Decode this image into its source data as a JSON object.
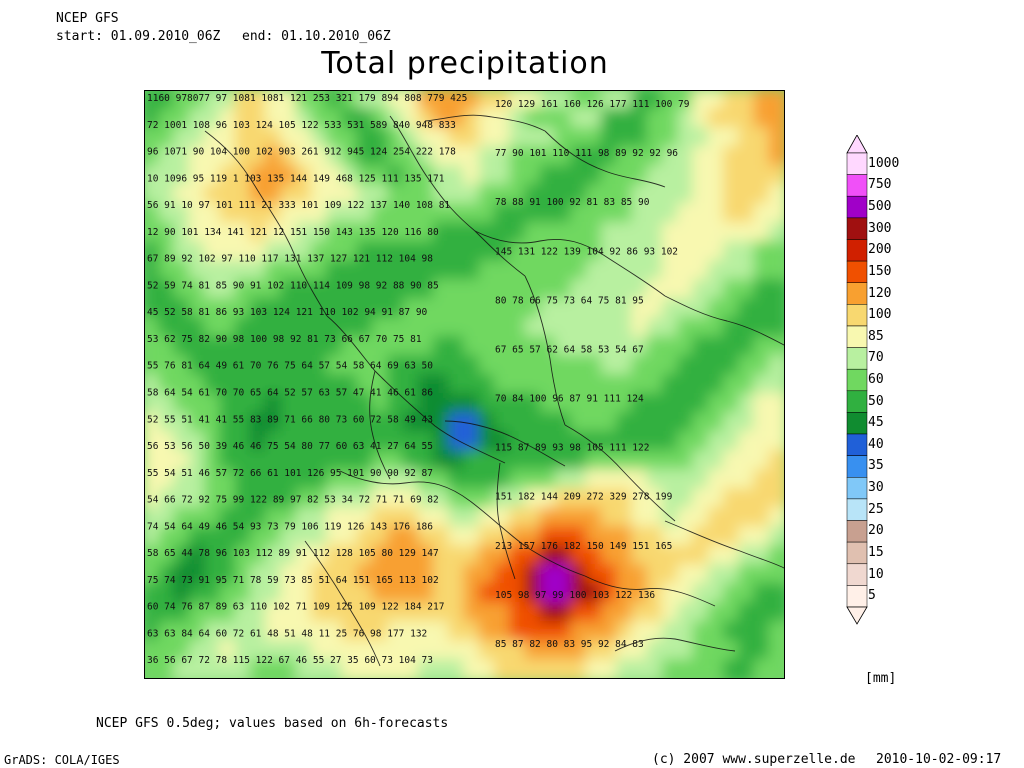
{
  "header": {
    "model": "NCEP GFS",
    "start_label": "start: 01.09.2010_06Z",
    "end_label": "end: 01.10.2010_06Z",
    "title": "Total precipitation"
  },
  "footer": {
    "note": "NCEP GFS 0.5deg; values based on 6h-forecasts",
    "software": "GrADS: COLA/IGES",
    "copyright": "(c) 2007 www.superzelle.de",
    "timestamp": "2010-10-02-09:17"
  },
  "legend": {
    "unit": "[mm]",
    "levels": [
      {
        "label": "1000",
        "color": "#ffd8ff"
      },
      {
        "label": "750",
        "color": "#f050f8"
      },
      {
        "label": "500",
        "color": "#a000c8"
      },
      {
        "label": "300",
        "color": "#a01010"
      },
      {
        "label": "200",
        "color": "#d02000"
      },
      {
        "label": "150",
        "color": "#f05000"
      },
      {
        "label": "120",
        "color": "#f8a030"
      },
      {
        "label": "100",
        "color": "#f8d870"
      },
      {
        "label": "85",
        "color": "#f8f8b0"
      },
      {
        "label": "70",
        "color": "#b8f0a0"
      },
      {
        "label": "60",
        "color": "#70d860"
      },
      {
        "label": "50",
        "color": "#30b040"
      },
      {
        "label": "45",
        "color": "#108c30"
      },
      {
        "label": "40",
        "color": "#2060d8"
      },
      {
        "label": "35",
        "color": "#3890f0"
      },
      {
        "label": "30",
        "color": "#80c8f8"
      },
      {
        "label": "25",
        "color": "#b8e4f8"
      },
      {
        "label": "20",
        "color": "#c8a090"
      },
      {
        "label": "15",
        "color": "#e0c0b0"
      },
      {
        "label": "10",
        "color": "#f0d8d0"
      },
      {
        "label": "5",
        "color": "#fff0e8"
      }
    ]
  },
  "map": {
    "color_field_rows": [
      "aabbcceeddbbabccddffffeeddccbbccaabbddeeff",
      "abbccdeeddcbbaabcdeffeddcbbbccaaabbcdeeeff",
      "bbccddeeeddcbbaabcddeeddcccbbbaaabbccddeef",
      "bccdddeefeddcbaabbcdddccbbbbaaabbbccddeeef",
      "cccddeefffeddcbbabbccdccbbaaaabbbcccddeeee",
      "ccddeeeffeedddccbbbcccbbbaaaabbbccccddeeed",
      "bccddeeeedddcccbbbbbbbbaaaaabbbbcccdddeedd",
      "bbcddddeddccbbbbbbbaaaaaabbbbbccccdddddddc",
      "abccddddcccbbbaaaaaaaaaabbbbbbccccddddccbb",
      "abbcccccbbbbaaaaaaaaaabbbbbbbcccccdddcccbb",
      "aabbccbbbaaaaaaaaaabbbbbbbbbcccccdddccbbaa",
      "aaabbbbaaaaaaaaaabbbbbbbbbccccccddcccbbaaa",
      "baaabbaaaaaaaaabbbbbbbbbbcccccccdccbbbaaaa",
      "bbaaaaaaaaaaabbbbbbaabbbbbbccccccbbbaaaabb",
      "bbbaaaaaaaaabbbbaaaaaabbbbbbbbccbbbaaaabbc",
      "cbbbaaaaaaaaaabbaa99aaabbbbbbbbbbbaaaabbcc",
      "ccbbbaaa9aaaaaabaa9999aaaabbbbbbaaaaabbcdd",
      "dccbbaa99aaaaaaaa999889aaaaabbbaaaaabbccdd",
      "ddccbaa9aaaaaaaaaaa98899aaaaaaaaaaabbccddd",
      "dddcbaaaaaaaaaabbaa99aaaaaaaabbbbbbbccddde",
      "ddccbbaaaaaabbbcccbbaaaabbbccddddccccdddee",
      "dcccbbaaaabbcccdddccbbbccddeeeeeddccddeeee",
      "ccbbbaaabbccdddeeeddccddeeffffeeddcddeeeed",
      "cbbaaaabbcccddeeffeeddeeffgggfffeeddeeeddc",
      "bba9aabbccddeeeffffeeeffgghhggffeeeeeddccb",
      "ba99aabccddeeefffffeeffgghiihggffeeddccbbb",
      "aa9aabbccddeeeeffffeefggghiihhgffeddccbbaa",
      "aaabbbccdddeeeeeeeeeefffgghhggffeedccbbaaa",
      "abbbccccdddddeeeddddeeffggggfffeddccbbaaab",
      "bbbccdcccccdddddddddddeeeffffeeddcccbbbaab",
      "bbcccccbbbcccdddddcccddeeeeeeddcccbbbbaabb"
    ],
    "number_rows": [
      "1160 978077 97 1081 1081 121 253 321 179 894 808 779 425",
      "72 1001 108 96 103 124 105 122 533 531 589 840 948 833",
      "96 1071 90 104 100 102 903 261 912 945 124 254 222 178",
      "10 1096 95 119 1 103 135 144 149 468 125 111 135 171",
      "56 91 10 97 101 111 21 333 101 109 122 137 140 108 81",
      "12 90 101 134 141 121 12 151 150 143 135 120 116 80",
      "67 89 92 102 97 110 117 131 137 127 121 112 104 98",
      "52 59 74 81 85 90 91 102 110 114 109 98 92 88 90 85",
      "45 52 58 81 86 93 103 124 121 110 102 94 91 87 90",
      "53 62 75 82 90 98 100 98 92 81 73 66 67 70 75 81",
      "55 76 81 64 49 61 70 76 75 64 57 54 58 64 69 63 50",
      "58 64 54 61 70 70 65 64 52 57 63 57 47 41 46 61 86",
      "52 55 51 41 41 55 83 89 71 66 80 73 60 72 58 49 43",
      "56 53 56 50 39 46 46 75 54 80 77 60 63 41 27 64 55",
      "55 54 51 46 57 72 66 61 101 126 95 101 90 90 92 87",
      "54 66 72 92 75 99 122 89 97 82 53 34 72 71 71 69 82",
      "74 54 64 49 46 54 93 73 79 106 119 126 143 176 186",
      "58 65 44 78 96 103 112 89 91 112 128 105 80 129 147",
      "75 74 73 91 95 71 78 59 73 85 51 64 151 165 113 102",
      "60 74 76 87 89 63 110 102 71 109 125 109 122 184 217",
      "63 63 84 64 60 72 61 48 51 48 11 25 76 98 177 132",
      "36 56 67 72 78 115 122 67 46 55 27 35 60 73 104 73"
    ],
    "right_numbers": [
      "120 129 161 160 126 177 111 100 79",
      "77 90 101 110 111 98 89 92 92 96",
      "78 88 91 100 92 81 83 85 90",
      "145 131 122 139 104 92 86 93 102",
      "80 78 66 75 73 64 75 81 95",
      "67 65 57 62 64 58 53 54 67",
      "70 84 100 96 87 91 111 124",
      "115 87 89 93 98 105 111 122",
      "151 182 144 209 272 329 278 199",
      "213 157 176 182 150 149 151 165",
      "105 98 97 99 100 103 122 136",
      "85 87 82 80 83 95 92 84 83"
    ]
  }
}
